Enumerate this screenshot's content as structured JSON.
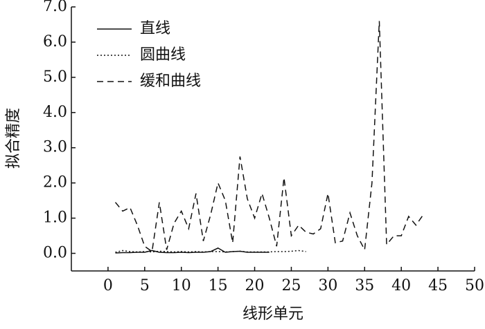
{
  "chart_data": {
    "type": "line",
    "xlabel": "线形单元",
    "ylabel": "拟合精度",
    "xlim": [
      -5,
      50
    ],
    "xticks": [
      0,
      5,
      10,
      15,
      20,
      25,
      30,
      35,
      40,
      45,
      50
    ],
    "ylim": [
      -0.5,
      7
    ],
    "yticks": [
      {
        "value": 0,
        "label": "0.0"
      },
      {
        "value": 1,
        "label": "1.0"
      },
      {
        "value": 2,
        "label": "2.0"
      },
      {
        "value": 3,
        "label": "3.0"
      },
      {
        "value": 4,
        "label": "4.0"
      },
      {
        "value": 5,
        "label": "5.0"
      },
      {
        "value": 6,
        "label": "6.0"
      },
      {
        "value": 7,
        "label": "7.0"
      }
    ],
    "legend": "upper left",
    "series": [
      {
        "name": "直线",
        "color": "#111111",
        "style": "solid",
        "x": [
          1,
          2,
          3,
          4,
          5,
          6,
          7,
          8,
          9,
          10,
          11,
          12,
          13,
          14,
          15,
          16,
          17,
          18,
          19,
          20,
          21,
          22
        ],
        "values": [
          0.01,
          0.02,
          0.02,
          0.03,
          0.03,
          0.08,
          0.03,
          0.02,
          0.02,
          0.03,
          0.02,
          0.03,
          0.03,
          0.05,
          0.15,
          0.03,
          0.05,
          0.06,
          0.03,
          0.03,
          0.03,
          0.03
        ]
      },
      {
        "name": "圆曲线",
        "color": "#111111",
        "style": "dotted",
        "x": [
          1,
          2,
          3,
          4,
          5,
          6,
          7,
          8,
          9,
          10,
          11,
          12,
          13,
          14,
          15,
          16,
          17,
          18,
          19,
          20,
          21,
          22,
          23,
          24,
          25,
          26,
          27
        ],
        "values": [
          0.03,
          0.08,
          0.05,
          0.04,
          0.05,
          0.04,
          0.06,
          0.05,
          0.04,
          0.05,
          0.04,
          0.05,
          0.04,
          0.05,
          0.05,
          0.04,
          0.05,
          0.06,
          0.04,
          0.04,
          0.04,
          0.04,
          0.05,
          0.05,
          0.06,
          0.08,
          0.05
        ]
      },
      {
        "name": "缓和曲线",
        "color": "#111111",
        "style": "dashed",
        "x": [
          1,
          2,
          3,
          4,
          5,
          6,
          7,
          8,
          9,
          10,
          11,
          12,
          13,
          14,
          15,
          16,
          17,
          18,
          19,
          20,
          21,
          22,
          23,
          24,
          25,
          26,
          27,
          28,
          29,
          30,
          31,
          32,
          33,
          34,
          35,
          36,
          37,
          38,
          39,
          40,
          41,
          42,
          43
        ],
        "values": [
          1.45,
          1.2,
          1.3,
          0.8,
          0.2,
          0.05,
          1.45,
          0.1,
          0.85,
          1.2,
          0.7,
          1.7,
          0.35,
          1.1,
          2.0,
          1.5,
          0.3,
          2.75,
          1.55,
          1.0,
          1.7,
          1.0,
          0.2,
          2.15,
          0.5,
          0.8,
          0.6,
          0.55,
          0.7,
          1.7,
          0.3,
          0.35,
          1.15,
          0.5,
          0.1,
          2.0,
          6.6,
          0.25,
          0.5,
          0.5,
          1.05,
          0.8,
          1.1
        ]
      }
    ]
  }
}
